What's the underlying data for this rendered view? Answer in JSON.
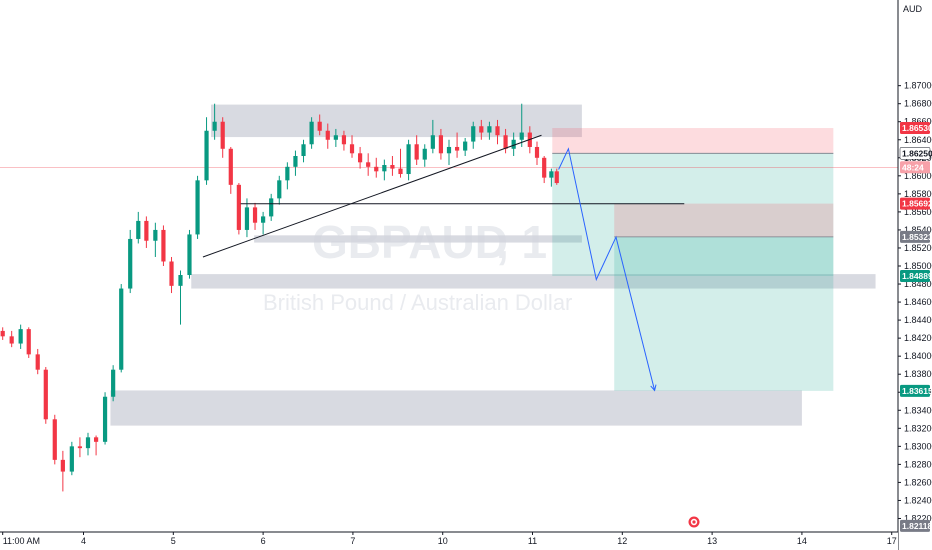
{
  "chart_data": {
    "type": "candlestick",
    "symbol": "GBPAUD",
    "timeframe_suffix": ", 1",
    "description": "British Pound / Australian Dollar",
    "currency": "AUD",
    "ylim": [
      1.8205,
      1.8795
    ],
    "y_ticks": [
      "1.87000",
      "1.86800",
      "1.86600",
      "1.86400",
      "1.86200",
      "1.86000",
      "1.85800",
      "1.85600",
      "1.85400",
      "1.85200",
      "1.85000",
      "1.84800",
      "1.84600",
      "1.84400",
      "1.84200",
      "1.84000",
      "1.83800",
      "1.83600",
      "1.83400",
      "1.83200",
      "1.83000",
      "1.82800",
      "1.82600",
      "1.82400",
      "1.82200"
    ],
    "x_ticks": [
      {
        "label": "11:00 AM",
        "pos": 0.3
      },
      {
        "label": "4",
        "pos": 9.3
      },
      {
        "label": "5",
        "pos": 19.3
      },
      {
        "label": "6",
        "pos": 29.3
      },
      {
        "label": "7",
        "pos": 39.3
      },
      {
        "label": "10",
        "pos": 49.3
      },
      {
        "label": "11",
        "pos": 59.3
      },
      {
        "label": "12",
        "pos": 69.3
      },
      {
        "label": "13",
        "pos": 79.3
      },
      {
        "label": "14",
        "pos": 89.3
      },
      {
        "label": "17",
        "pos": 99.3
      }
    ],
    "price_badges": [
      {
        "text": "1.86530",
        "value": 1.8653,
        "color": "#f23645"
      },
      {
        "text": "1.86250",
        "value": 1.8625,
        "color": "#ffffff",
        "text_color": "#131722",
        "border": "#131722"
      },
      {
        "text": "48:24",
        "value": 1.86095,
        "color": "#f7a1a9"
      },
      {
        "text": "1.85692",
        "value": 1.85692,
        "color": "#f23645"
      },
      {
        "text": "1.85323",
        "value": 1.85323,
        "color": "#787b86"
      },
      {
        "text": "1.84889",
        "value": 1.84889,
        "color": "#089981"
      },
      {
        "text": "1.83615",
        "value": 1.83615,
        "color": "#089981"
      },
      {
        "text": "1.82118",
        "value": 1.82118,
        "color": "#787b86"
      }
    ],
    "current_price": 1.86095,
    "zones": [
      {
        "kind": "supply",
        "x0": 23.5,
        "x1": 64.8,
        "y0": 1.8643,
        "y1": 1.8679,
        "color": "#d1d4dc"
      },
      {
        "kind": "support",
        "x0": 28.3,
        "x1": 64.8,
        "y0": 1.8526,
        "y1": 1.8534,
        "color": "#d1d4dc"
      },
      {
        "kind": "support",
        "x0": 21.3,
        "x1": 97.5,
        "y0": 1.8475,
        "y1": 1.8491,
        "color": "#d1d4dc"
      },
      {
        "kind": "demand",
        "x0": 12.3,
        "x1": 89.3,
        "y0": 1.8323,
        "y1": 1.8362,
        "color": "#d1d4dc"
      }
    ],
    "positions": [
      {
        "entry": 1.8625,
        "stop": 1.8653,
        "target": 1.84889,
        "x0": 61.5,
        "x1": 92.8
      },
      {
        "entry": 1.85323,
        "stop": 1.85692,
        "target": 1.83615,
        "x0": 68.4,
        "x1": 92.8
      }
    ],
    "lines": [
      {
        "name": "ascending-trendline",
        "x0": 22.6,
        "y0": 1.851,
        "x1": 60.3,
        "y1": 1.8645,
        "color": "#131722"
      },
      {
        "name": "horizontal-level",
        "x0": 26.8,
        "y0": 1.8569,
        "x1": 76.2,
        "y1": 1.8569,
        "color": "#131722"
      }
    ],
    "projection": [
      {
        "x": 62.2,
        "y": 1.8607
      },
      {
        "x": 63.3,
        "y": 1.863
      },
      {
        "x": 66.4,
        "y": 1.8485
      },
      {
        "x": 68.6,
        "y": 1.8532
      },
      {
        "x": 72.9,
        "y": 1.8362
      }
    ],
    "candles": [
      [
        0.3,
        1.8428,
        1.8432,
        1.8418,
        1.8422
      ],
      [
        1.3,
        1.8422,
        1.8428,
        1.841,
        1.8414
      ],
      [
        2.3,
        1.8414,
        1.8435,
        1.8408,
        1.843
      ],
      [
        3.2,
        1.843,
        1.8432,
        1.8398,
        1.8402
      ],
      [
        4.2,
        1.8402,
        1.8408,
        1.838,
        1.8385
      ],
      [
        5.1,
        1.8385,
        1.8388,
        1.8325,
        1.833
      ],
      [
        6.1,
        1.833,
        1.8335,
        1.828,
        1.8285
      ],
      [
        7.0,
        1.8285,
        1.8295,
        1.825,
        1.8272
      ],
      [
        8.0,
        1.8272,
        1.8305,
        1.8268,
        1.83
      ],
      [
        8.9,
        1.83,
        1.831,
        1.8288,
        1.8298
      ],
      [
        9.8,
        1.8298,
        1.8315,
        1.829,
        1.831
      ],
      [
        10.7,
        1.831,
        1.8312,
        1.829,
        1.8305
      ],
      [
        11.7,
        1.8305,
        1.836,
        1.8302,
        1.8355
      ],
      [
        12.6,
        1.8355,
        1.839,
        1.835,
        1.8385
      ],
      [
        13.5,
        1.8385,
        1.848,
        1.8382,
        1.8475
      ],
      [
        14.5,
        1.8475,
        1.854,
        1.847,
        1.853
      ],
      [
        15.4,
        1.853,
        1.856,
        1.8525,
        1.855
      ],
      [
        16.3,
        1.855,
        1.8555,
        1.852,
        1.8528
      ],
      [
        17.3,
        1.8528,
        1.8548,
        1.851,
        1.854
      ],
      [
        18.2,
        1.854,
        1.8545,
        1.85,
        1.8505
      ],
      [
        19.1,
        1.8505,
        1.851,
        1.847,
        1.8478
      ],
      [
        20.1,
        1.8478,
        1.8495,
        1.8435,
        1.849
      ],
      [
        21.1,
        1.849,
        1.854,
        1.8486,
        1.8535
      ],
      [
        22.0,
        1.8535,
        1.86,
        1.853,
        1.8595
      ],
      [
        23.0,
        1.8595,
        1.8665,
        1.859,
        1.865
      ],
      [
        23.9,
        1.865,
        1.868,
        1.864,
        1.866
      ],
      [
        24.8,
        1.866,
        1.8665,
        1.862,
        1.863
      ],
      [
        25.7,
        1.863,
        1.8632,
        1.858,
        1.859
      ],
      [
        26.6,
        1.859,
        1.8592,
        1.8535,
        1.854
      ],
      [
        27.5,
        1.854,
        1.8575,
        1.8532,
        1.8565
      ],
      [
        28.4,
        1.8565,
        1.857,
        1.854,
        1.8548
      ],
      [
        29.3,
        1.8548,
        1.856,
        1.8535,
        1.8555
      ],
      [
        30.2,
        1.8555,
        1.858,
        1.855,
        1.8575
      ],
      [
        31.1,
        1.8575,
        1.86,
        1.8568,
        1.8595
      ],
      [
        32.0,
        1.8595,
        1.8615,
        1.8585,
        1.861
      ],
      [
        32.9,
        1.861,
        1.8628,
        1.86,
        1.8622
      ],
      [
        33.8,
        1.8622,
        1.864,
        1.8615,
        1.8635
      ],
      [
        34.7,
        1.8635,
        1.8665,
        1.863,
        1.866
      ],
      [
        35.6,
        1.866,
        1.8668,
        1.8645,
        1.865
      ],
      [
        36.5,
        1.865,
        1.8658,
        1.863,
        1.864
      ],
      [
        37.4,
        1.864,
        1.8652,
        1.8632,
        1.8645
      ],
      [
        38.3,
        1.8645,
        1.865,
        1.8628,
        1.8635
      ],
      [
        39.2,
        1.8635,
        1.8645,
        1.862,
        1.8625
      ],
      [
        40.1,
        1.8625,
        1.8632,
        1.8608,
        1.8615
      ],
      [
        41.0,
        1.8615,
        1.8625,
        1.86,
        1.861
      ],
      [
        41.9,
        1.861,
        1.862,
        1.8598,
        1.8605
      ],
      [
        42.8,
        1.8605,
        1.8618,
        1.8595,
        1.8612
      ],
      [
        43.7,
        1.8612,
        1.8622,
        1.86,
        1.8608
      ],
      [
        44.6,
        1.8608,
        1.863,
        1.8598,
        1.8602
      ],
      [
        45.5,
        1.8602,
        1.864,
        1.8595,
        1.8635
      ],
      [
        46.4,
        1.8635,
        1.8645,
        1.8612,
        1.8618
      ],
      [
        47.3,
        1.8618,
        1.8635,
        1.861,
        1.863
      ],
      [
        48.2,
        1.863,
        1.8662,
        1.8625,
        1.8645
      ],
      [
        49.1,
        1.8645,
        1.8652,
        1.8618,
        1.8625
      ],
      [
        50.0,
        1.8625,
        1.864,
        1.8612,
        1.8632
      ],
      [
        50.9,
        1.8632,
        1.8648,
        1.862,
        1.8628
      ],
      [
        51.8,
        1.8628,
        1.8642,
        1.8622,
        1.8638
      ],
      [
        52.7,
        1.8638,
        1.866,
        1.863,
        1.8655
      ],
      [
        53.6,
        1.8655,
        1.8662,
        1.864,
        1.8648
      ],
      [
        54.5,
        1.8648,
        1.866,
        1.864,
        1.8655
      ],
      [
        55.4,
        1.8655,
        1.8662,
        1.8635,
        1.8645
      ],
      [
        56.3,
        1.8645,
        1.8652,
        1.8625,
        1.863
      ],
      [
        57.2,
        1.863,
        1.8648,
        1.8622,
        1.864
      ],
      [
        58.1,
        1.864,
        1.868,
        1.8632,
        1.8648
      ],
      [
        59.0,
        1.8648,
        1.8655,
        1.8625,
        1.8632
      ],
      [
        59.8,
        1.8632,
        1.8638,
        1.8612,
        1.862
      ],
      [
        60.6,
        1.862,
        1.8622,
        1.8592,
        1.8598
      ],
      [
        61.4,
        1.8598,
        1.8608,
        1.8588,
        1.8605
      ],
      [
        62.0,
        1.8605,
        1.8608,
        1.859,
        1.8592
      ]
    ]
  }
}
